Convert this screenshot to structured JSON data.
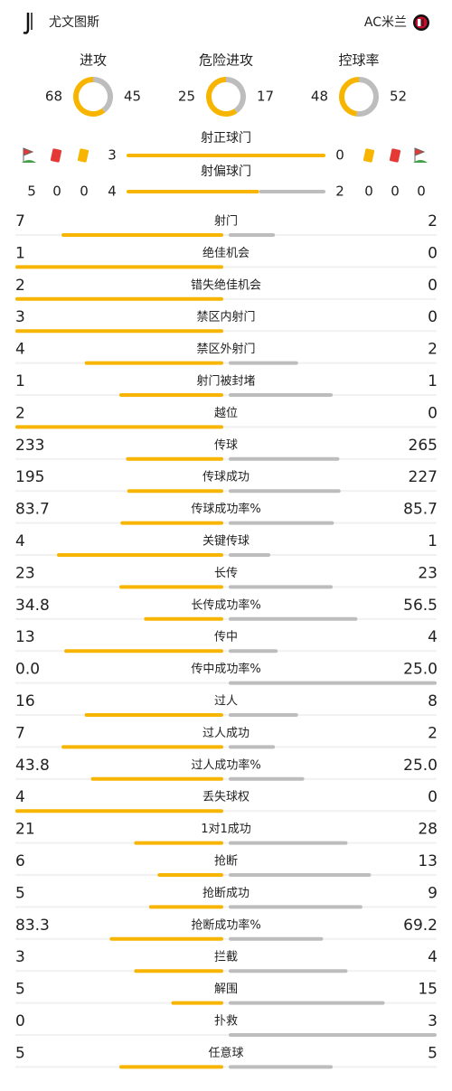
{
  "header": {
    "home": "尤文图斯",
    "away": "AC米兰"
  },
  "summary": [
    {
      "label": "进攻",
      "home": 68,
      "away": 45
    },
    {
      "label": "危险进攻",
      "home": 25,
      "away": 17
    },
    {
      "label": "控球率",
      "home": 48,
      "away": 52
    }
  ],
  "shots": [
    {
      "label": "射正球门",
      "home": 3,
      "away": 0
    },
    {
      "label": "射偏球门",
      "home": 4,
      "away": 2
    }
  ],
  "discipline": {
    "home": {
      "corners": 5,
      "red": 0,
      "yellow": 0
    },
    "away": {
      "yellow": 0,
      "red": 0,
      "corners": 0
    }
  },
  "stats": [
    {
      "label": "射门",
      "home": "7",
      "away": "2"
    },
    {
      "label": "绝佳机会",
      "home": "1",
      "away": "0"
    },
    {
      "label": "错失绝佳机会",
      "home": "2",
      "away": "0"
    },
    {
      "label": "禁区内射门",
      "home": "3",
      "away": "0"
    },
    {
      "label": "禁区外射门",
      "home": "4",
      "away": "2"
    },
    {
      "label": "射门被封堵",
      "home": "1",
      "away": "1"
    },
    {
      "label": "越位",
      "home": "2",
      "away": "0"
    },
    {
      "label": "传球",
      "home": "233",
      "away": "265"
    },
    {
      "label": "传球成功",
      "home": "195",
      "away": "227"
    },
    {
      "label": "传球成功率%",
      "home": "83.7",
      "away": "85.7"
    },
    {
      "label": "关键传球",
      "home": "4",
      "away": "1"
    },
    {
      "label": "长传",
      "home": "23",
      "away": "23"
    },
    {
      "label": "长传成功率%",
      "home": "34.8",
      "away": "56.5"
    },
    {
      "label": "传中",
      "home": "13",
      "away": "4"
    },
    {
      "label": "传中成功率%",
      "home": "0.0",
      "away": "25.0"
    },
    {
      "label": "过人",
      "home": "16",
      "away": "8"
    },
    {
      "label": "过人成功",
      "home": "7",
      "away": "2"
    },
    {
      "label": "过人成功率%",
      "home": "43.8",
      "away": "25.0"
    },
    {
      "label": "丢失球权",
      "home": "4",
      "away": "0"
    },
    {
      "label": "1对1成功",
      "home": "21",
      "away": "28"
    },
    {
      "label": "抢断",
      "home": "6",
      "away": "13"
    },
    {
      "label": "抢断成功",
      "home": "5",
      "away": "9"
    },
    {
      "label": "抢断成功率%",
      "home": "83.3",
      "away": "69.2"
    },
    {
      "label": "拦截",
      "home": "3",
      "away": "4"
    },
    {
      "label": "解围",
      "home": "5",
      "away": "15"
    },
    {
      "label": "扑救",
      "home": "0",
      "away": "3"
    },
    {
      "label": "任意球",
      "home": "5",
      "away": "5"
    }
  ]
}
